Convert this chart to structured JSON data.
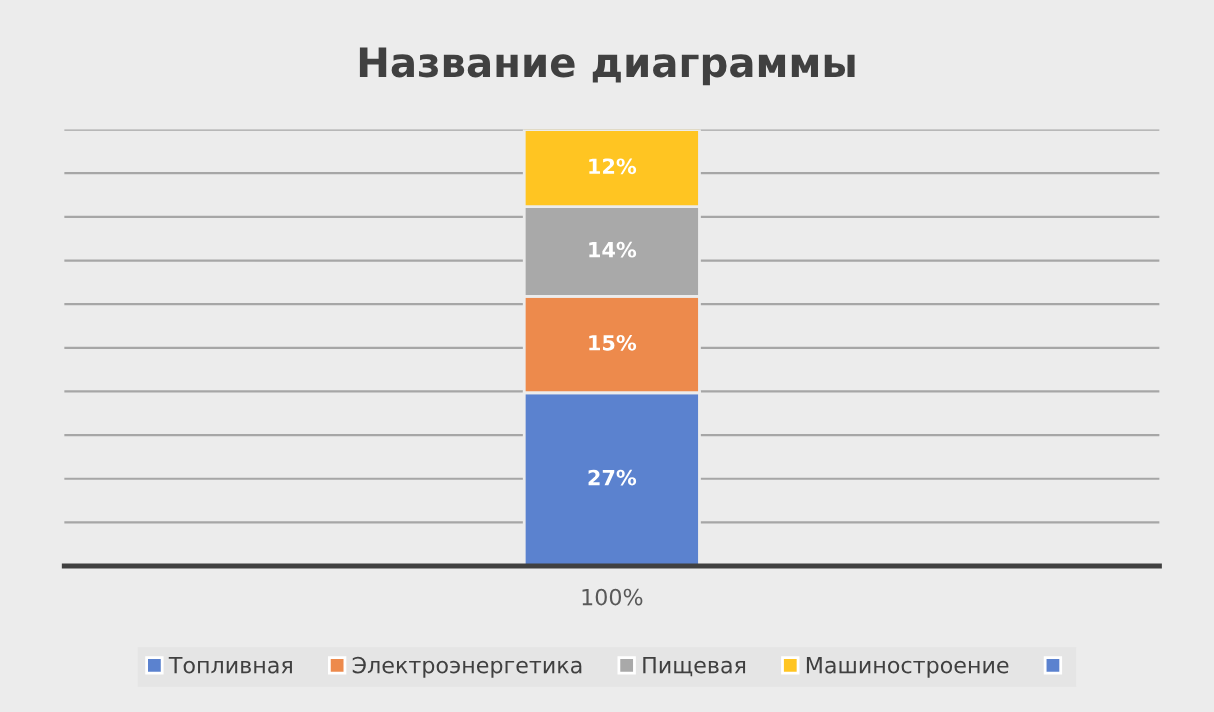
{
  "chart_data": {
    "type": "bar",
    "title": "Название диаграммы",
    "stacked": true,
    "categories": [
      "100%"
    ],
    "series": [
      {
        "name": "Топливная",
        "color": "#5b82cf",
        "values": [
          27
        ],
        "value_labels": [
          "27%"
        ]
      },
      {
        "name": "Электроэнергетика",
        "color": "#ed8a4c",
        "values": [
          15
        ],
        "value_labels": [
          "15%"
        ]
      },
      {
        "name": "Пищевая",
        "color": "#a9a9a9",
        "values": [
          14
        ],
        "value_labels": [
          "14%"
        ]
      },
      {
        "name": "Машиностроение",
        "color": "#ffc522",
        "values": [
          12
        ],
        "value_labels": [
          "12%"
        ]
      },
      {
        "color": "#5b82cf",
        "values": [
          null
        ]
      }
    ],
    "ylim": [
      0,
      68
    ],
    "yticks": [
      {
        "value": 0,
        "label": null
      },
      {
        "value": 6.8,
        "label": null
      },
      {
        "value": 13.6,
        "label": null
      },
      {
        "value": 20.4,
        "label": null
      },
      {
        "value": 27.2,
        "label": null
      },
      {
        "value": 34,
        "label": null
      },
      {
        "value": 40.8,
        "label": null
      },
      {
        "value": 47.6,
        "label": null
      },
      {
        "value": 54.4,
        "label": null
      },
      {
        "value": 61.2,
        "label": null
      },
      {
        "value": 68,
        "label": null
      }
    ],
    "tick_labels": "x",
    "grid": "y",
    "legend": "bottom"
  }
}
